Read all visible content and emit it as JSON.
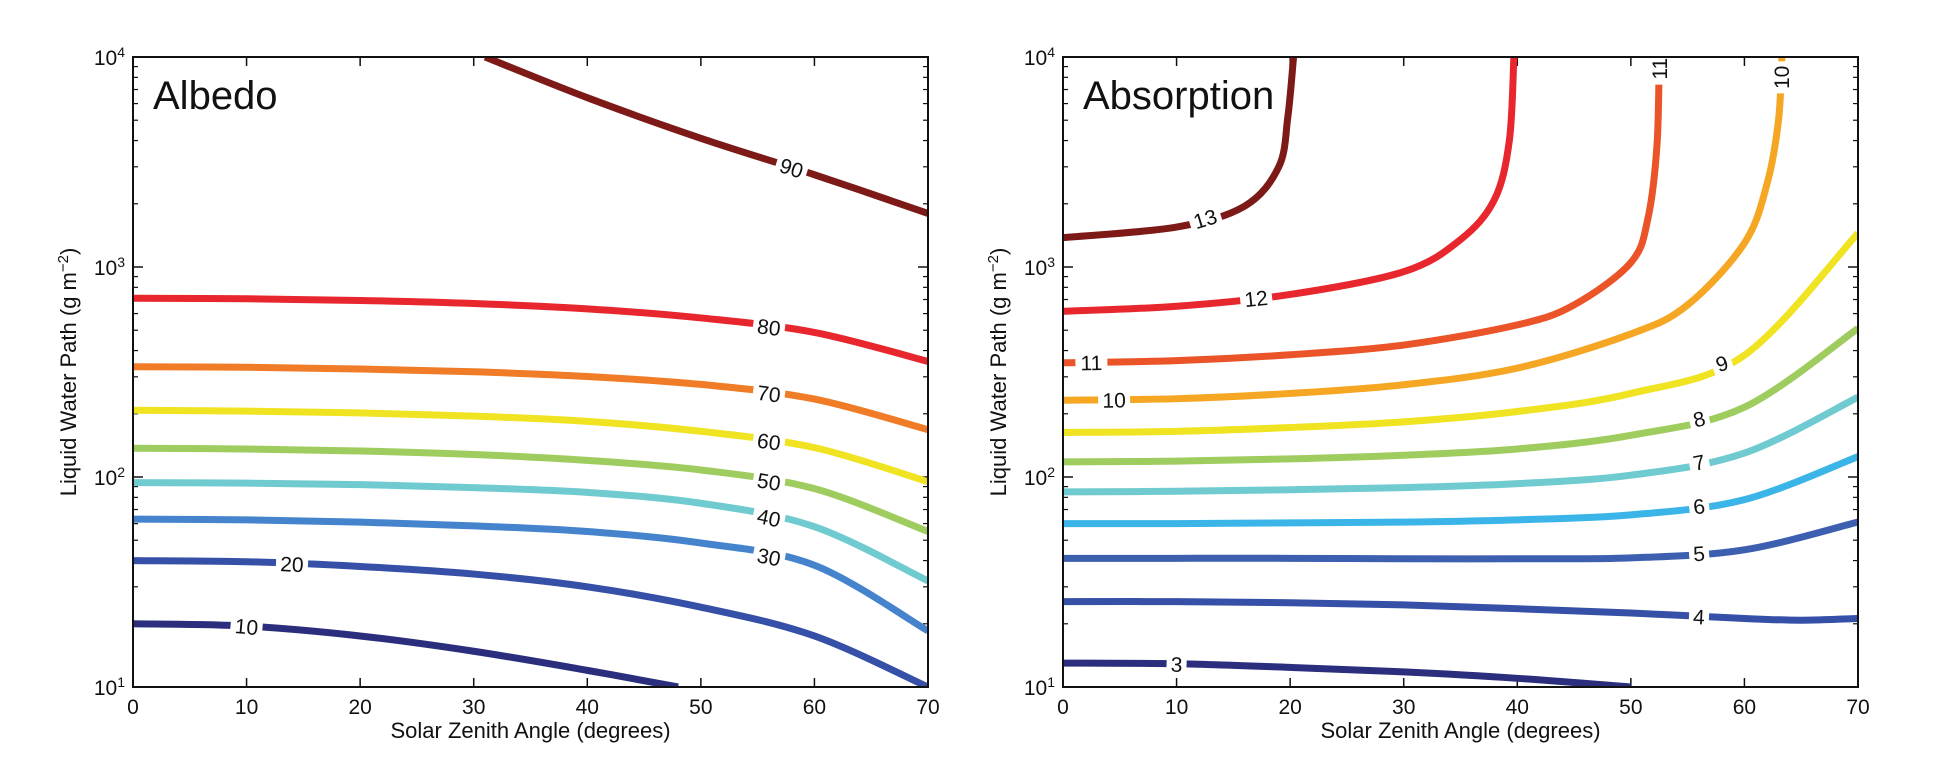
{
  "chart_data": [
    {
      "type": "line",
      "title": "Albedo",
      "xlabel": "Solar Zenith Angle (degrees)",
      "ylabel": "Liquid Water Path (g m",
      "ylabel_sup": "−2",
      "ylabel_close": ")",
      "xlim": [
        0,
        70
      ],
      "ylim": [
        10,
        10000
      ],
      "yscale": "log",
      "xticks": [
        0,
        10,
        20,
        30,
        40,
        50,
        60,
        70
      ],
      "xticklabels": [
        "0",
        "10",
        "20",
        "30",
        "40",
        "50",
        "60",
        "70"
      ],
      "yticks": [
        10,
        100,
        1000,
        10000
      ],
      "ytickbase": "10",
      "ytickexp": [
        "1",
        "2",
        "3",
        "4"
      ],
      "contours": [
        {
          "level": "10",
          "color": "#2a2e7d",
          "x": [
            0,
            10,
            20,
            30,
            40,
            48
          ],
          "y": [
            20,
            19.5,
            17.5,
            14.8,
            12.0,
            10.0
          ],
          "label_x": 10
        },
        {
          "level": "20",
          "color": "#3550a6",
          "x": [
            0,
            10,
            20,
            30,
            40,
            50,
            60,
            70
          ],
          "y": [
            40,
            39.5,
            37.5,
            34.5,
            30,
            24,
            17.5,
            10
          ],
          "label_x": 14
        },
        {
          "level": "30",
          "color": "#4584cc",
          "x": [
            0,
            10,
            20,
            30,
            40,
            50,
            60,
            70
          ],
          "y": [
            63,
            62.5,
            61,
            58.5,
            55,
            48.5,
            38,
            18.5
          ],
          "label_x": 56
        },
        {
          "level": "40",
          "color": "#6fcbd0",
          "x": [
            0,
            10,
            20,
            30,
            40,
            50,
            60,
            70
          ],
          "y": [
            94,
            93.5,
            92,
            89,
            84.5,
            75,
            58,
            32
          ],
          "label_x": 56
        },
        {
          "level": "50",
          "color": "#9fcc5f",
          "x": [
            0,
            10,
            20,
            30,
            40,
            50,
            60,
            70
          ],
          "y": [
            137,
            136,
            133,
            128,
            120,
            108,
            88,
            55
          ],
          "label_x": 56
        },
        {
          "level": "60",
          "color": "#f0e322",
          "x": [
            0,
            10,
            20,
            30,
            40,
            50,
            60,
            70
          ],
          "y": [
            208,
            206,
            202,
            195,
            184,
            165,
            138,
            95
          ],
          "label_x": 56
        },
        {
          "level": "70",
          "color": "#f17c27",
          "x": [
            0,
            10,
            20,
            30,
            40,
            50,
            60,
            70
          ],
          "y": [
            335,
            333,
            327,
            317,
            301,
            276,
            235,
            168
          ],
          "label_x": 56
        },
        {
          "level": "80",
          "color": "#e8262d",
          "x": [
            0,
            10,
            20,
            30,
            40,
            50,
            60,
            70
          ],
          "y": [
            710,
            706,
            693,
            670,
            632,
            572,
            488,
            355
          ],
          "label_x": 56
        },
        {
          "level": "90",
          "color": "#7d1a18",
          "x": [
            31,
            40,
            50,
            60,
            70
          ],
          "y": [
            10000,
            6400,
            4100,
            2750,
            1800
          ],
          "label_x": 58
        }
      ]
    },
    {
      "type": "line",
      "title": "Absorption",
      "xlabel": "Solar Zenith Angle (degrees)",
      "ylabel": "Liquid Water Path (g m",
      "ylabel_sup": "−2",
      "ylabel_close": ")",
      "xlim": [
        0,
        70
      ],
      "ylim": [
        10,
        10000
      ],
      "yscale": "log",
      "xticks": [
        0,
        10,
        20,
        30,
        40,
        50,
        60,
        70
      ],
      "xticklabels": [
        "0",
        "10",
        "20",
        "30",
        "40",
        "50",
        "60",
        "70"
      ],
      "yticks": [
        10,
        100,
        1000,
        10000
      ],
      "ytickbase": "10",
      "ytickexp": [
        "1",
        "2",
        "3",
        "4"
      ],
      "contours": [
        {
          "level": "3",
          "color": "#2a2e7d",
          "x": [
            0,
            10,
            20,
            30,
            40,
            50
          ],
          "y": [
            13,
            12.9,
            12.4,
            11.8,
            11.0,
            10.0
          ],
          "label_x": 10
        },
        {
          "level": "4",
          "color": "#3550a6",
          "x": [
            0,
            10,
            20,
            30,
            40,
            50,
            60,
            65,
            70
          ],
          "y": [
            25.5,
            25.5,
            25.2,
            24.6,
            23.6,
            22.5,
            21.2,
            20.8,
            21.2
          ],
          "label_x": 56
        },
        {
          "level": "5",
          "color": "#3d5fb0",
          "x": [
            0,
            10,
            20,
            30,
            40,
            50,
            60,
            70
          ],
          "y": [
            41,
            41,
            41,
            40.8,
            40.8,
            41.2,
            45,
            61
          ],
          "label_x": 56
        },
        {
          "level": "6",
          "color": "#3bb5e8",
          "x": [
            0,
            10,
            20,
            30,
            40,
            50,
            60,
            70
          ],
          "y": [
            60,
            60,
            60.5,
            61,
            62.5,
            66,
            78,
            125
          ],
          "label_x": 56
        },
        {
          "level": "7",
          "color": "#6fcbd0",
          "x": [
            0,
            10,
            20,
            30,
            40,
            50,
            60,
            70
          ],
          "y": [
            85,
            85.5,
            87,
            89,
            93,
            102,
            130,
            240
          ],
          "label_x": 56
        },
        {
          "level": "8",
          "color": "#9fcc5f",
          "x": [
            0,
            10,
            20,
            30,
            40,
            50,
            60,
            70
          ],
          "y": [
            118,
            119,
            122,
            127,
            136,
            158,
            215,
            510
          ],
          "label_x": 56
        },
        {
          "level": "9",
          "color": "#f0e322",
          "x": [
            0,
            10,
            20,
            30,
            40,
            50,
            60,
            70
          ],
          "y": [
            163,
            165,
            172,
            183,
            205,
            250,
            380,
            1450
          ],
          "label_x": 58
        },
        {
          "level": "10",
          "color": "#f5a623",
          "x": [
            0,
            10,
            20,
            30,
            40,
            50,
            55,
            60,
            62,
            63,
            63.3
          ],
          "y": [
            232,
            236,
            250,
            275,
            330,
            480,
            660,
            1300,
            2500,
            5000,
            10000
          ],
          "label_x": 4.5,
          "label2_y": 8000
        },
        {
          "level": "11",
          "color": "#ea5428",
          "x": [
            0,
            10,
            20,
            30,
            40,
            45,
            50,
            51.5,
            52.3,
            52.5
          ],
          "y": [
            350,
            358,
            382,
            425,
            530,
            660,
            1050,
            1700,
            3800,
            10000
          ],
          "label_x": 2.5,
          "label2_y": 8800
        },
        {
          "level": "12",
          "color": "#e8262d",
          "x": [
            0,
            10,
            20,
            30,
            35,
            38,
            39.3,
            39.7
          ],
          "y": [
            615,
            650,
            740,
            950,
            1350,
            2100,
            4000,
            10000
          ],
          "label_x": 17
        },
        {
          "level": "13",
          "color": "#7d1a18",
          "x": [
            0,
            10,
            16,
            19,
            19.8,
            20.3
          ],
          "y": [
            1380,
            1550,
            1950,
            3000,
            5200,
            10000
          ],
          "label_x": 12.5
        }
      ]
    }
  ]
}
